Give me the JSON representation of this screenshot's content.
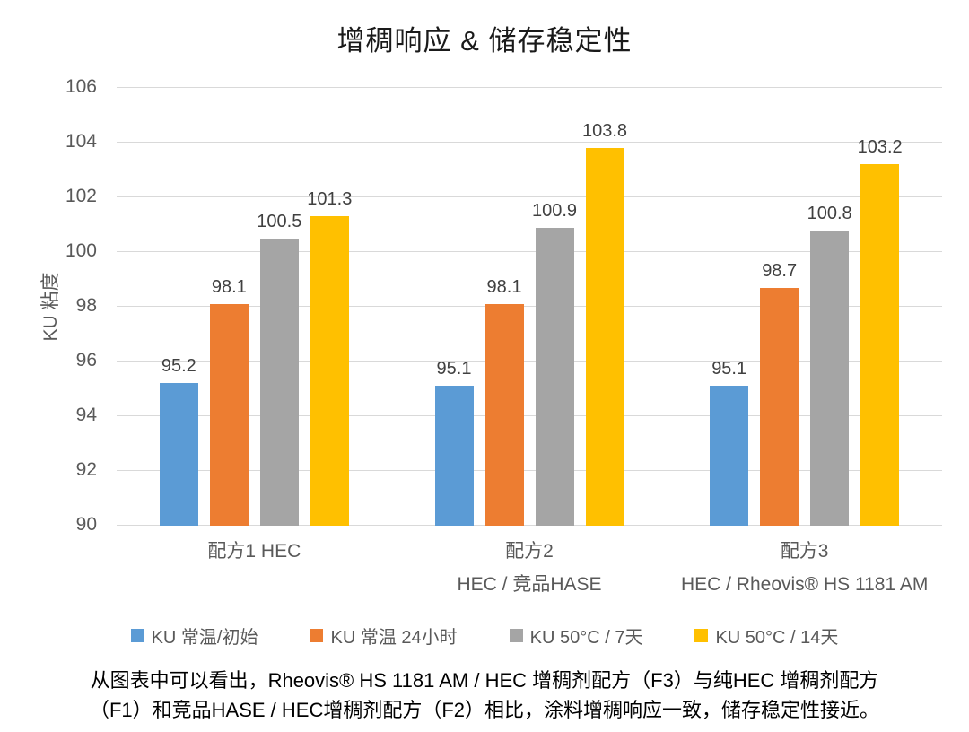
{
  "title": "增稠响应 & 储存稳定性",
  "chart_data": {
    "type": "bar",
    "title": "增稠响应 & 储存稳定性",
    "xlabel": "",
    "ylabel": "KU 粘度",
    "ylim": [
      90,
      106
    ],
    "yticks": [
      90,
      92,
      94,
      96,
      98,
      100,
      102,
      104,
      106
    ],
    "grid": true,
    "legend_position": "bottom",
    "categories": [
      {
        "line1": "配方1  HEC",
        "line2": ""
      },
      {
        "line1": "配方2",
        "line2": "HEC / 竞品HASE"
      },
      {
        "line1": "配方3",
        "line2": "HEC / Rheovis® HS 1181 AM"
      }
    ],
    "series": [
      {
        "name": "KU 常温/初始",
        "color": "#5B9BD5",
        "values": [
          95.2,
          95.1,
          95.1
        ]
      },
      {
        "name": "KU 常温 24小时",
        "color": "#ED7D31",
        "values": [
          98.1,
          98.1,
          98.7
        ]
      },
      {
        "name": "KU 50°C / 7天",
        "color": "#A5A5A5",
        "values": [
          100.5,
          100.9,
          100.8
        ]
      },
      {
        "name": "KU 50°C / 14天",
        "color": "#FFC000",
        "values": [
          101.3,
          103.8,
          103.2
        ]
      }
    ]
  },
  "footnote": {
    "line1": "从图表中可以看出，Rheovis® HS 1181 AM / HEC 增稠剂配方（F3）与纯HEC 增稠剂配方",
    "line2": "（F1）和竞品HASE / HEC增稠剂配方（F2）相比，涂料增稠响应一致，储存稳定性接近。"
  }
}
